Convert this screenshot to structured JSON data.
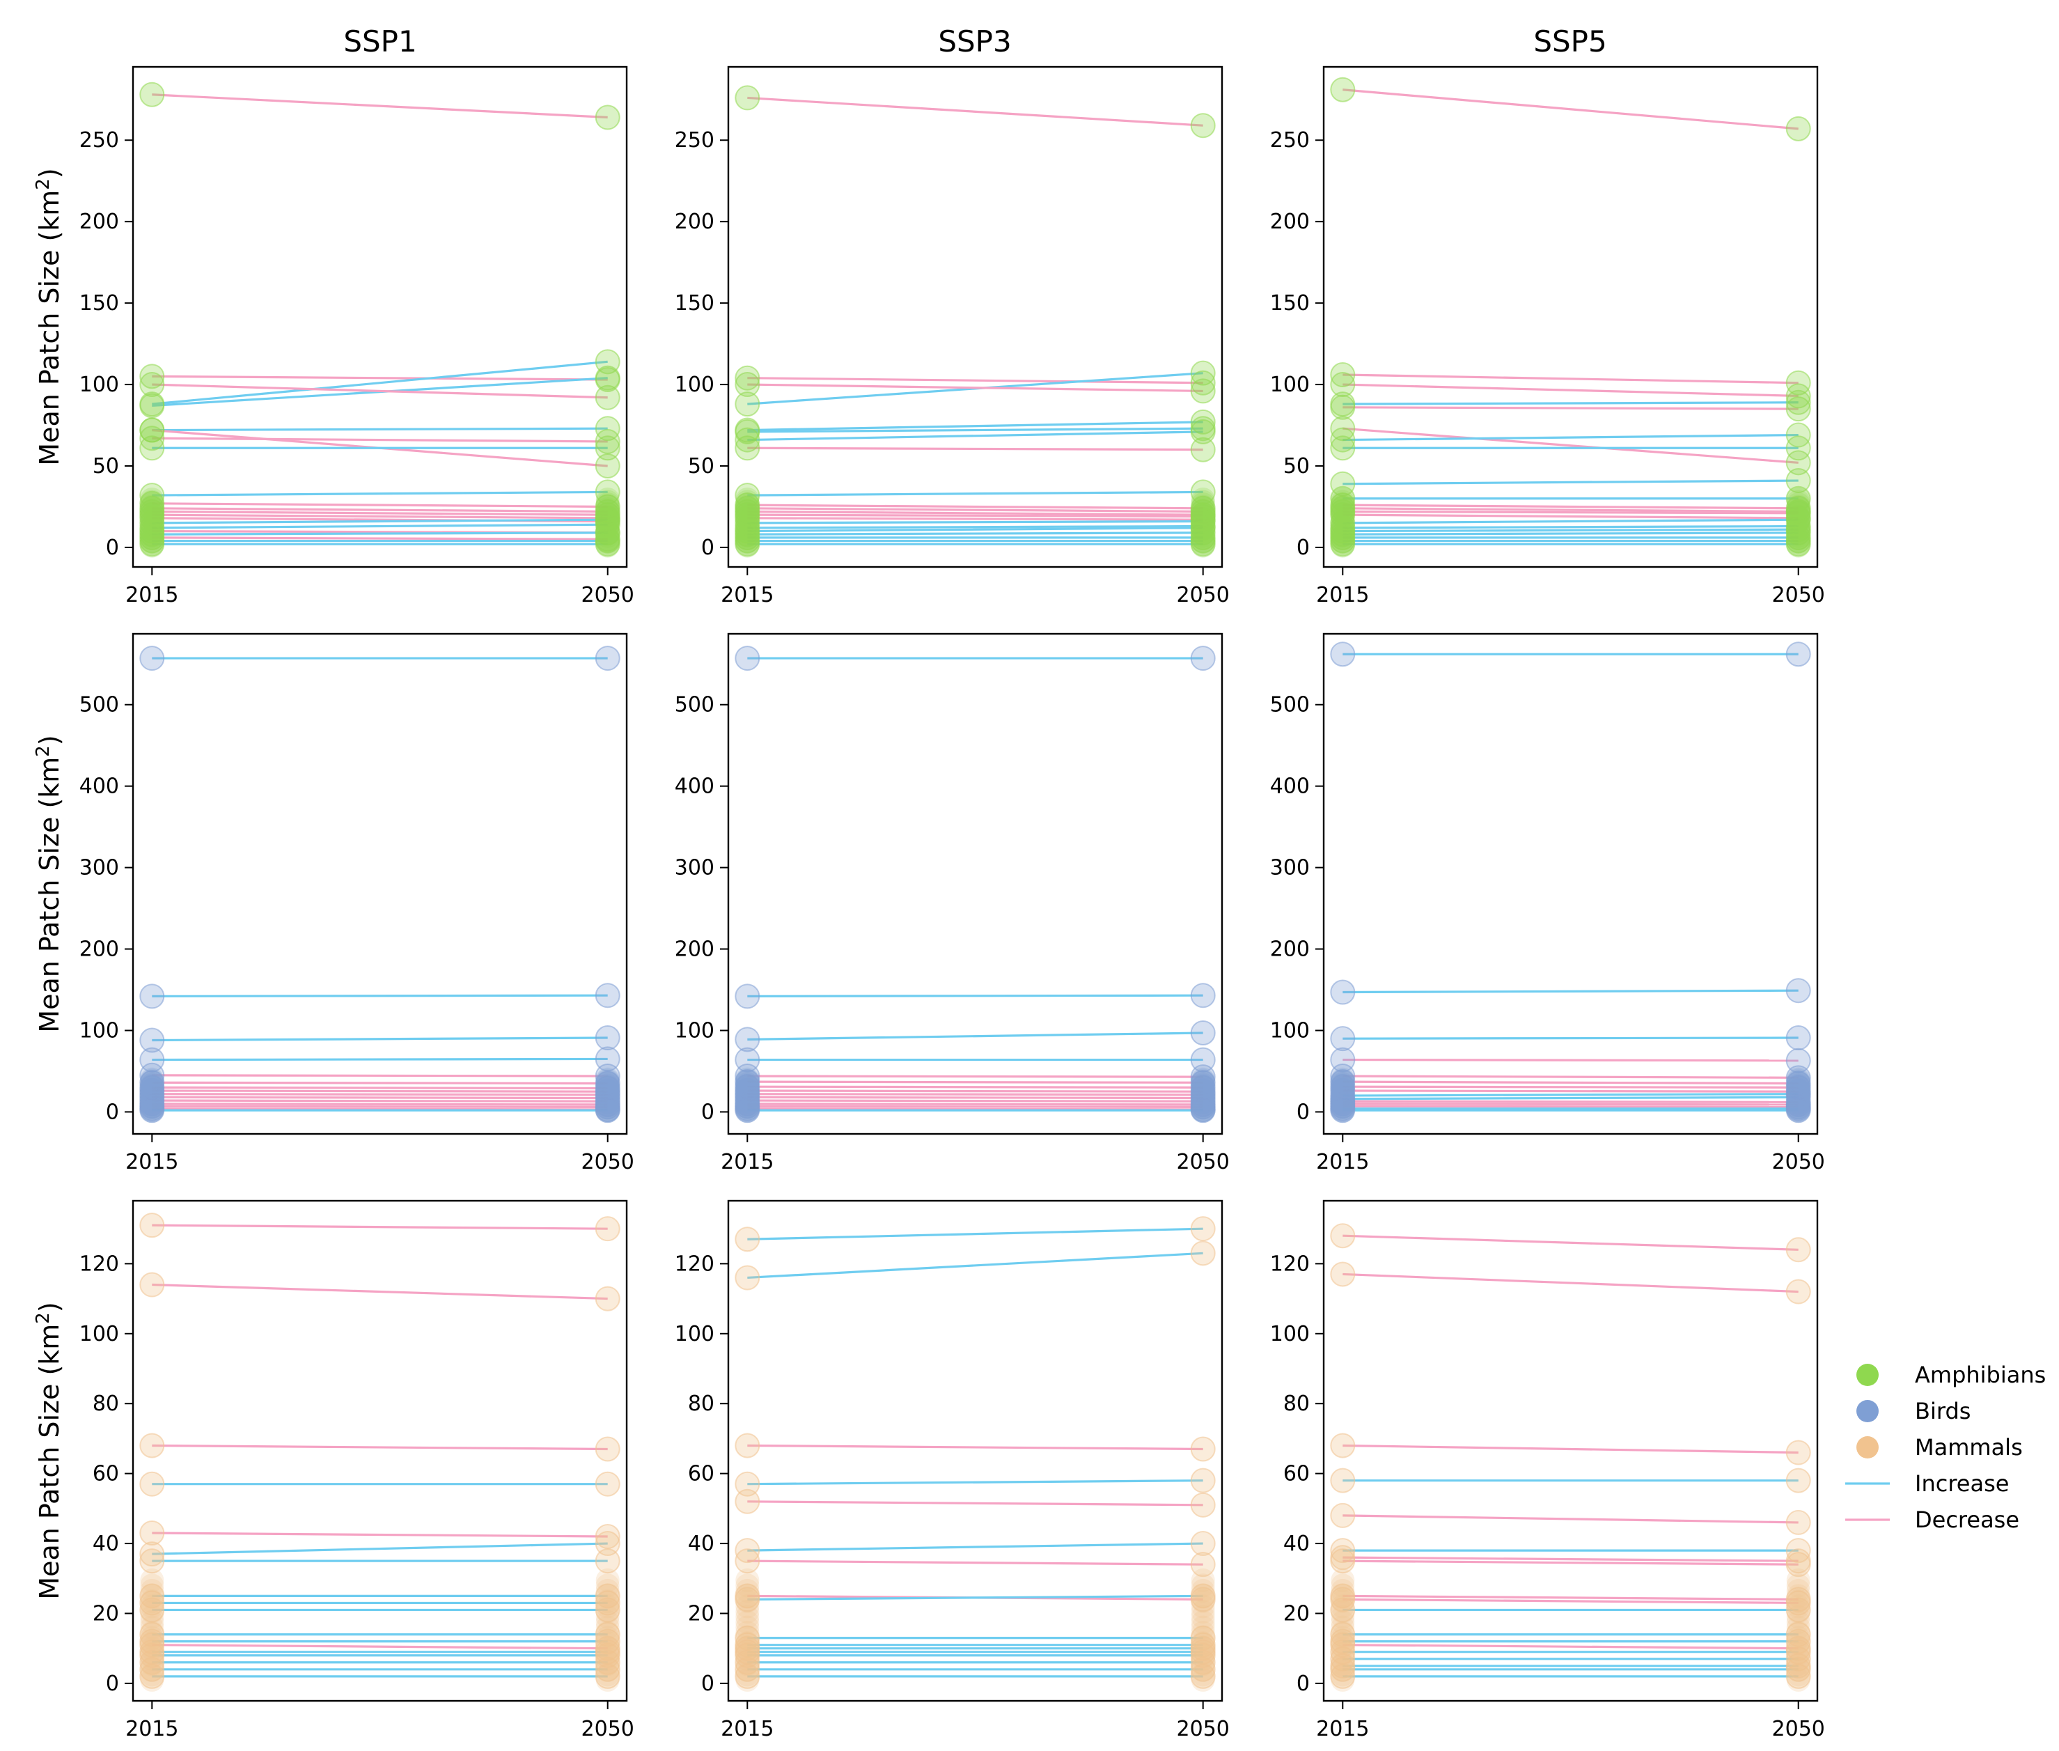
{
  "chart_data": {
    "type": "line",
    "layout": "3x3 small multiples",
    "column_titles": [
      "SSP1",
      "SSP3",
      "SSP5"
    ],
    "ylabel": "Mean Patch Size (km²)",
    "ylabel_parts": [
      "Mean Patch Size (km",
      "2",
      ")"
    ],
    "x_categories": [
      "2015",
      "2050"
    ],
    "legend": {
      "position": "right",
      "entries": [
        {
          "key": "amphibians",
          "label": "Amphibians",
          "kind": "marker",
          "color": "#8fd84f"
        },
        {
          "key": "birds",
          "label": "Birds",
          "kind": "marker",
          "color": "#7f9fd4"
        },
        {
          "key": "mammals",
          "label": "Mammals",
          "kind": "marker",
          "color": "#f1c38f"
        },
        {
          "key": "increase",
          "label": "Increase",
          "kind": "line",
          "color": "#6fcdf0"
        },
        {
          "key": "decrease",
          "label": "Decrease",
          "kind": "line",
          "color": "#f5a3c4"
        }
      ]
    },
    "rows": [
      {
        "taxon": "Amphibians",
        "color": "#8fd84f",
        "ylim": [
          -12,
          295
        ],
        "yticks": [
          0,
          50,
          100,
          150,
          200,
          250
        ],
        "panels": [
          {
            "scenario": "SSP1",
            "pairs": [
              [
                278,
                264
              ],
              [
                105,
                103
              ],
              [
                88,
                114
              ],
              [
                87,
                104
              ],
              [
                100,
                92
              ],
              [
                72,
                73
              ],
              [
                72,
                50
              ],
              [
                67,
                65
              ],
              [
                61,
                61
              ],
              [
                32,
                34
              ],
              [
                27,
                25
              ],
              [
                24,
                22
              ],
              [
                22,
                20
              ],
              [
                20,
                18
              ],
              [
                18,
                16
              ],
              [
                15,
                17
              ],
              [
                12,
                14
              ],
              [
                10,
                9
              ],
              [
                8,
                9
              ],
              [
                6,
                5
              ],
              [
                4,
                4
              ],
              [
                2,
                2
              ]
            ]
          },
          {
            "scenario": "SSP3",
            "pairs": [
              [
                276,
                259
              ],
              [
                104,
                101
              ],
              [
                88,
                107
              ],
              [
                100,
                96
              ],
              [
                72,
                77
              ],
              [
                71,
                73
              ],
              [
                66,
                71
              ],
              [
                61,
                60
              ],
              [
                32,
                34
              ],
              [
                26,
                24
              ],
              [
                24,
                22
              ],
              [
                22,
                20
              ],
              [
                20,
                19
              ],
              [
                18,
                17
              ],
              [
                15,
                16
              ],
              [
                12,
                13
              ],
              [
                10,
                12
              ],
              [
                8,
                9
              ],
              [
                6,
                6
              ],
              [
                4,
                4
              ],
              [
                2,
                2
              ]
            ]
          },
          {
            "scenario": "SSP5",
            "pairs": [
              [
                281,
                257
              ],
              [
                106,
                101
              ],
              [
                100,
                93
              ],
              [
                88,
                89
              ],
              [
                86,
                85
              ],
              [
                73,
                52
              ],
              [
                66,
                69
              ],
              [
                61,
                61
              ],
              [
                39,
                41
              ],
              [
                30,
                30
              ],
              [
                26,
                24
              ],
              [
                24,
                22
              ],
              [
                22,
                21
              ],
              [
                20,
                18
              ],
              [
                15,
                17
              ],
              [
                12,
                13
              ],
              [
                10,
                11
              ],
              [
                8,
                9
              ],
              [
                6,
                6
              ],
              [
                4,
                4
              ],
              [
                2,
                2
              ]
            ]
          }
        ]
      },
      {
        "taxon": "Birds",
        "color": "#7f9fd4",
        "ylim": [
          -27,
          587
        ],
        "yticks": [
          0,
          100,
          200,
          300,
          400,
          500
        ],
        "panels": [
          {
            "scenario": "SSP1",
            "pairs": [
              [
                557,
                557
              ],
              [
                142,
                143
              ],
              [
                88,
                91
              ],
              [
                64,
                65
              ],
              [
                45,
                44
              ],
              [
                36,
                35
              ],
              [
                30,
                29
              ],
              [
                26,
                25
              ],
              [
                22,
                21
              ],
              [
                18,
                17
              ],
              [
                14,
                13
              ],
              [
                10,
                9
              ],
              [
                7,
                6
              ],
              [
                4,
                3
              ],
              [
                2,
                2
              ]
            ]
          },
          {
            "scenario": "SSP3",
            "pairs": [
              [
                557,
                557
              ],
              [
                142,
                143
              ],
              [
                89,
                97
              ],
              [
                64,
                64
              ],
              [
                44,
                43
              ],
              [
                37,
                36
              ],
              [
                31,
                30
              ],
              [
                26,
                25
              ],
              [
                22,
                21
              ],
              [
                18,
                17
              ],
              [
                14,
                13
              ],
              [
                10,
                9
              ],
              [
                7,
                6
              ],
              [
                4,
                3
              ],
              [
                2,
                2
              ]
            ]
          },
          {
            "scenario": "SSP5",
            "pairs": [
              [
                562,
                562
              ],
              [
                147,
                149
              ],
              [
                90,
                91
              ],
              [
                64,
                63
              ],
              [
                44,
                42
              ],
              [
                37,
                35
              ],
              [
                31,
                30
              ],
              [
                26,
                25
              ],
              [
                20,
                22
              ],
              [
                16,
                18
              ],
              [
                13,
                12
              ],
              [
                10,
                9
              ],
              [
                7,
                6
              ],
              [
                4,
                4
              ],
              [
                2,
                2
              ]
            ]
          }
        ]
      },
      {
        "taxon": "Mammals",
        "color": "#f1c38f",
        "ylim": [
          -5,
          138
        ],
        "yticks": [
          0,
          20,
          40,
          60,
          80,
          100,
          120
        ],
        "panels": [
          {
            "scenario": "SSP1",
            "pairs": [
              [
                131,
                130
              ],
              [
                114,
                110
              ],
              [
                68,
                67
              ],
              [
                57,
                57
              ],
              [
                43,
                42
              ],
              [
                37,
                40
              ],
              [
                35,
                35
              ],
              [
                25,
                25
              ],
              [
                23,
                23
              ],
              [
                21,
                21
              ],
              [
                14,
                14
              ],
              [
                12,
                12
              ],
              [
                11,
                10
              ],
              [
                9,
                9
              ],
              [
                8,
                8
              ],
              [
                6,
                6
              ],
              [
                4,
                4
              ],
              [
                2,
                2
              ]
            ]
          },
          {
            "scenario": "SSP3",
            "pairs": [
              [
                127,
                130
              ],
              [
                116,
                123
              ],
              [
                68,
                67
              ],
              [
                57,
                58
              ],
              [
                52,
                51
              ],
              [
                38,
                40
              ],
              [
                35,
                34
              ],
              [
                25,
                24
              ],
              [
                24,
                25
              ],
              [
                13,
                13
              ],
              [
                11,
                11
              ],
              [
                10,
                10
              ],
              [
                9,
                9
              ],
              [
                8,
                8
              ],
              [
                6,
                6
              ],
              [
                4,
                4
              ],
              [
                2,
                2
              ]
            ]
          },
          {
            "scenario": "SSP5",
            "pairs": [
              [
                128,
                124
              ],
              [
                117,
                112
              ],
              [
                68,
                66
              ],
              [
                58,
                58
              ],
              [
                48,
                46
              ],
              [
                38,
                38
              ],
              [
                36,
                35
              ],
              [
                35,
                34
              ],
              [
                25,
                24
              ],
              [
                24,
                23
              ],
              [
                21,
                21
              ],
              [
                14,
                14
              ],
              [
                12,
                12
              ],
              [
                11,
                10
              ],
              [
                9,
                9
              ],
              [
                7,
                7
              ],
              [
                5,
                5
              ],
              [
                4,
                4
              ],
              [
                2,
                2
              ]
            ]
          }
        ]
      }
    ]
  }
}
